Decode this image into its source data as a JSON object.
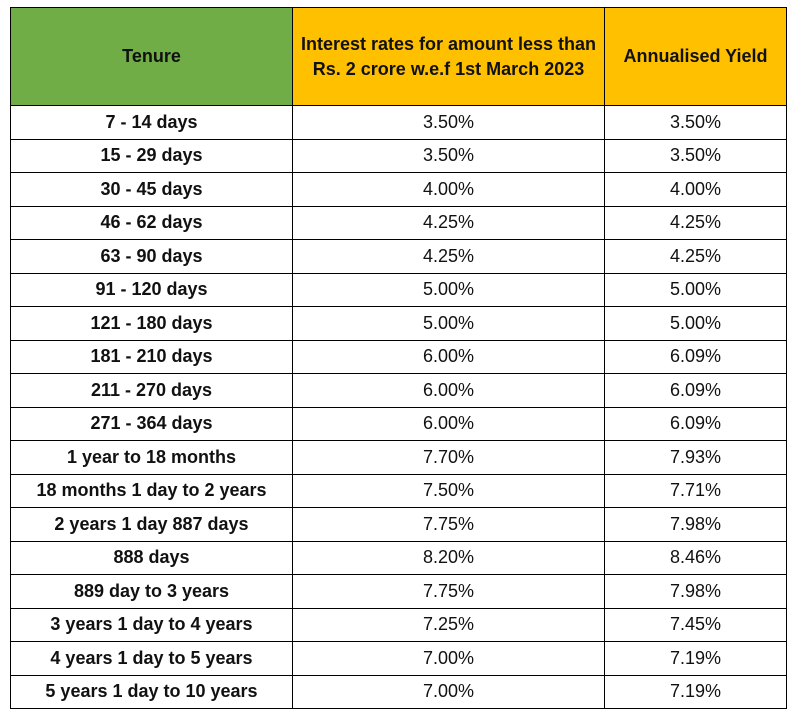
{
  "table": {
    "headers": {
      "tenure": "Tenure",
      "rate": "Interest rates for amount less than Rs. 2 crore w.e.f 1st March 2023",
      "yield": "Annualised Yield"
    },
    "colors": {
      "tenure_header": "#70ad47",
      "other_headers": "#ffc000"
    },
    "rows": [
      {
        "tenure": "7 - 14 days",
        "rate": "3.50%",
        "yield": "3.50%"
      },
      {
        "tenure": "15 - 29 days",
        "rate": "3.50%",
        "yield": "3.50%"
      },
      {
        "tenure": "30 - 45 days",
        "rate": "4.00%",
        "yield": "4.00%"
      },
      {
        "tenure": "46 - 62 days",
        "rate": "4.25%",
        "yield": "4.25%"
      },
      {
        "tenure": "63 - 90 days",
        "rate": "4.25%",
        "yield": "4.25%"
      },
      {
        "tenure": "91 - 120 days",
        "rate": "5.00%",
        "yield": "5.00%"
      },
      {
        "tenure": "121 - 180 days",
        "rate": "5.00%",
        "yield": "5.00%"
      },
      {
        "tenure": "181 - 210 days",
        "rate": "6.00%",
        "yield": "6.09%"
      },
      {
        "tenure": "211 - 270 days",
        "rate": "6.00%",
        "yield": "6.09%"
      },
      {
        "tenure": "271 - 364 days",
        "rate": "6.00%",
        "yield": "6.09%"
      },
      {
        "tenure": "1 year to 18 months",
        "rate": "7.70%",
        "yield": "7.93%"
      },
      {
        "tenure": "18 months 1 day  to 2 years",
        "rate": "7.50%",
        "yield": "7.71%"
      },
      {
        "tenure": "2 years 1 day 887 days",
        "rate": "7.75%",
        "yield": "7.98%"
      },
      {
        "tenure": "888 days",
        "rate": "8.20%",
        "yield": "8.46%"
      },
      {
        "tenure": "889 day to 3 years",
        "rate": "7.75%",
        "yield": "7.98%"
      },
      {
        "tenure": "3 years 1 day to 4 years",
        "rate": "7.25%",
        "yield": "7.45%"
      },
      {
        "tenure": "4 years 1 day to 5 years",
        "rate": "7.00%",
        "yield": "7.19%"
      },
      {
        "tenure": "5 years 1 day to 10 years",
        "rate": "7.00%",
        "yield": "7.19%"
      }
    ]
  }
}
